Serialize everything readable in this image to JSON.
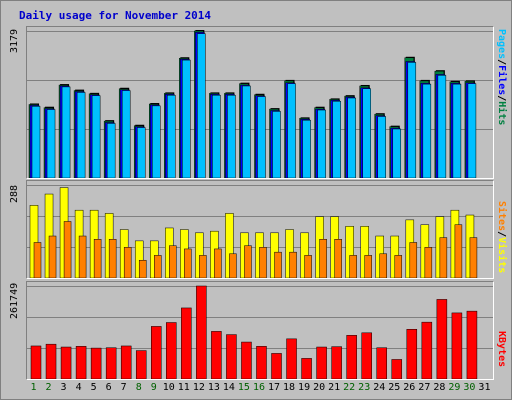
{
  "title": "Daily usage for November 2014",
  "panels": {
    "top": {
      "max_label": "3179",
      "labels": [
        "Pages",
        "Files",
        "Hits"
      ],
      "colors": [
        "#00c0ff",
        "#0000ff",
        "#008040"
      ]
    },
    "mid": {
      "max_label": "288",
      "labels": [
        "Sites",
        "Visits"
      ],
      "colors": [
        "#ff8000",
        "#ffff00"
      ]
    },
    "bot": {
      "max_label": "261749",
      "labels": [
        "KBytes"
      ],
      "colors": [
        "#ff0000"
      ]
    }
  },
  "separator": "/",
  "weekend_days": [
    1,
    2,
    8,
    9,
    15,
    16,
    22,
    23,
    29,
    30
  ],
  "colors": {
    "weekday": "#000000",
    "weekend": "#006000",
    "hits": "#008040",
    "files": "#0000ff",
    "pages": "#00c0ff",
    "visits": "#ffff00",
    "sites": "#ff8000",
    "kbytes": "#ff0000"
  },
  "chart_data": [
    {
      "type": "bar",
      "title": "Daily usage for November 2014",
      "categories": [
        "1",
        "2",
        "3",
        "4",
        "5",
        "6",
        "7",
        "8",
        "9",
        "10",
        "11",
        "12",
        "13",
        "14",
        "15",
        "16",
        "17",
        "18",
        "19",
        "20",
        "21",
        "22",
        "23",
        "24",
        "25",
        "26",
        "27",
        "28",
        "29",
        "30",
        "31"
      ],
      "series": [
        {
          "name": "Hits",
          "values": [
            1590,
            1520,
            2010,
            1890,
            1820,
            1230,
            1930,
            1130,
            1600,
            1830,
            2590,
            3179,
            1830,
            1830,
            2040,
            1800,
            1490,
            2100,
            1290,
            1520,
            1700,
            1770,
            1990,
            1380,
            1110,
            2600,
            2100,
            2310,
            2080,
            2090,
            0
          ]
        },
        {
          "name": "Files",
          "values": [
            1570,
            1500,
            1990,
            1870,
            1800,
            1200,
            1910,
            1110,
            1580,
            1810,
            2570,
            3150,
            1810,
            1810,
            2010,
            1780,
            1460,
            2060,
            1270,
            1490,
            1680,
            1750,
            1950,
            1350,
            1080,
            2520,
            2050,
            2240,
            2050,
            2060,
            0
          ]
        },
        {
          "name": "Pages",
          "values": [
            1550,
            1480,
            1970,
            1850,
            1780,
            1180,
            1890,
            1090,
            1560,
            1790,
            2550,
            3120,
            1790,
            1790,
            1990,
            1760,
            1440,
            2040,
            1250,
            1470,
            1660,
            1730,
            1930,
            1330,
            1060,
            2500,
            2030,
            2220,
            2030,
            2040,
            0
          ]
        }
      ],
      "ylim": [
        0,
        3179
      ]
    },
    {
      "type": "bar",
      "categories": [
        "1",
        "2",
        "3",
        "4",
        "5",
        "6",
        "7",
        "8",
        "9",
        "10",
        "11",
        "12",
        "13",
        "14",
        "15",
        "16",
        "17",
        "18",
        "19",
        "20",
        "21",
        "22",
        "23",
        "24",
        "25",
        "26",
        "27",
        "28",
        "29",
        "30",
        "31"
      ],
      "series": [
        {
          "name": "Visits",
          "values": [
            225,
            260,
            280,
            210,
            210,
            200,
            150,
            115,
            115,
            155,
            150,
            140,
            145,
            200,
            140,
            140,
            140,
            150,
            140,
            190,
            190,
            160,
            160,
            130,
            130,
            180,
            165,
            190,
            210,
            195,
            0
          ]
        },
        {
          "name": "Sites",
          "values": [
            110,
            130,
            175,
            130,
            120,
            120,
            95,
            55,
            70,
            100,
            90,
            70,
            90,
            75,
            100,
            95,
            80,
            80,
            70,
            120,
            120,
            70,
            70,
            75,
            70,
            110,
            95,
            125,
            165,
            125,
            0
          ]
        }
      ],
      "ylim": [
        0,
        288
      ]
    },
    {
      "type": "bar",
      "categories": [
        "1",
        "2",
        "3",
        "4",
        "5",
        "6",
        "7",
        "8",
        "9",
        "10",
        "11",
        "12",
        "13",
        "14",
        "15",
        "16",
        "17",
        "18",
        "19",
        "20",
        "21",
        "22",
        "23",
        "24",
        "25",
        "26",
        "27",
        "28",
        "29",
        "30",
        "31"
      ],
      "series": [
        {
          "name": "KBytes",
          "values": [
            93000,
            98000,
            90000,
            92000,
            87000,
            88000,
            93000,
            80000,
            148000,
            159000,
            200000,
            261749,
            134000,
            125000,
            104000,
            92000,
            72000,
            113000,
            58000,
            90000,
            91000,
            123000,
            130000,
            88000,
            55000,
            140000,
            160000,
            224000,
            186000,
            191000,
            0
          ]
        }
      ],
      "ylim": [
        0,
        261749
      ]
    }
  ]
}
